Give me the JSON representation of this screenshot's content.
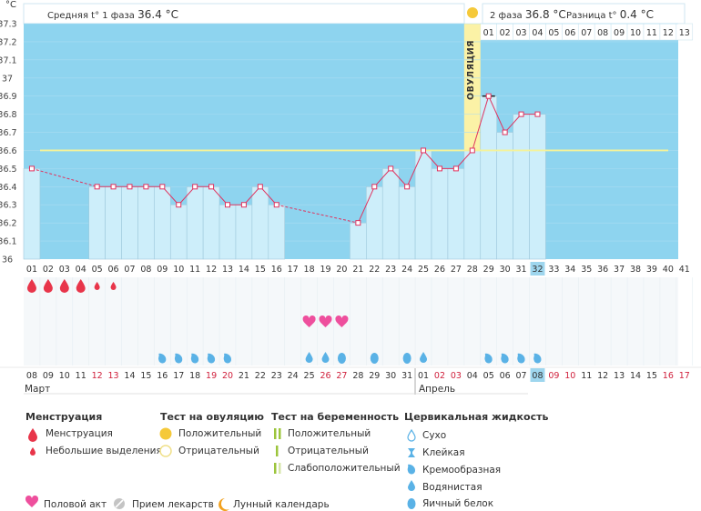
{
  "unit_label": "°C",
  "header": {
    "phase1_label": "Средняя t° 1 фаза",
    "phase1_value": "36.4 °C",
    "phase2_label": "2 фаза",
    "phase2_value": "36.8 °C",
    "diff_label": "Разница t°",
    "diff_value": "0.4 °C"
  },
  "ovulation_label": "ОВУЛЯЦИЯ",
  "luteal_days": [
    "01",
    "02",
    "03",
    "04",
    "05",
    "06",
    "07",
    "08",
    "09",
    "10",
    "11",
    "12",
    "13"
  ],
  "cycle_days": [
    "01",
    "02",
    "03",
    "04",
    "05",
    "06",
    "07",
    "08",
    "09",
    "10",
    "11",
    "12",
    "13",
    "14",
    "15",
    "16",
    "17",
    "18",
    "19",
    "20",
    "21",
    "22",
    "23",
    "24",
    "25",
    "26",
    "27",
    "28",
    "29",
    "30",
    "31",
    "32",
    "33",
    "34",
    "35",
    "36",
    "37",
    "38",
    "39",
    "40",
    "41"
  ],
  "dates": [
    {
      "t": "08",
      "red": false
    },
    {
      "t": "09",
      "red": false
    },
    {
      "t": "10",
      "red": false
    },
    {
      "t": "11",
      "red": false
    },
    {
      "t": "12",
      "red": true
    },
    {
      "t": "13",
      "red": true
    },
    {
      "t": "14",
      "red": false
    },
    {
      "t": "15",
      "red": false
    },
    {
      "t": "16",
      "red": false
    },
    {
      "t": "17",
      "red": false
    },
    {
      "t": "18",
      "red": false
    },
    {
      "t": "19",
      "red": true
    },
    {
      "t": "20",
      "red": true
    },
    {
      "t": "21",
      "red": false
    },
    {
      "t": "22",
      "red": false
    },
    {
      "t": "23",
      "red": false
    },
    {
      "t": "24",
      "red": false
    },
    {
      "t": "25",
      "red": false
    },
    {
      "t": "26",
      "red": true
    },
    {
      "t": "27",
      "red": true
    },
    {
      "t": "28",
      "red": false
    },
    {
      "t": "29",
      "red": false
    },
    {
      "t": "30",
      "red": false
    },
    {
      "t": "31",
      "red": false
    },
    {
      "t": "01",
      "red": false
    },
    {
      "t": "02",
      "red": true
    },
    {
      "t": "03",
      "red": true
    },
    {
      "t": "04",
      "red": false
    },
    {
      "t": "05",
      "red": false
    },
    {
      "t": "06",
      "red": false
    },
    {
      "t": "07",
      "red": false
    },
    {
      "t": "08",
      "red": false
    },
    {
      "t": "09",
      "red": true
    },
    {
      "t": "10",
      "red": true
    },
    {
      "t": "11",
      "red": false
    },
    {
      "t": "12",
      "red": false
    },
    {
      "t": "13",
      "red": false
    },
    {
      "t": "14",
      "red": false
    },
    {
      "t": "15",
      "red": false
    },
    {
      "t": "16",
      "red": true
    },
    {
      "t": "17",
      "red": true
    }
  ],
  "months": {
    "first": "Март",
    "second": "Апрель"
  },
  "chart_data": {
    "type": "line",
    "title": "",
    "xlabel": "",
    "ylabel": "°C",
    "ylim": [
      36.0,
      37.3
    ],
    "y_ticks": [
      "36",
      "36.1",
      "36.2",
      "36.3",
      "36.4",
      "36.5",
      "36.6",
      "36.7",
      "36.8",
      "36.9",
      "37",
      "37.1",
      "37.2",
      "37.3"
    ],
    "coverline": 36.6,
    "ovulation_day": 28,
    "current_day": 32,
    "series": [
      {
        "x": [
          1,
          5,
          6,
          7,
          8,
          9,
          10,
          11,
          12,
          13,
          14,
          15,
          16,
          21,
          22,
          23,
          24,
          25,
          26,
          27,
          28,
          29,
          30,
          31,
          32
        ],
        "values": [
          36.5,
          36.4,
          36.4,
          36.4,
          36.4,
          36.4,
          36.3,
          36.4,
          36.4,
          36.3,
          36.3,
          36.4,
          36.3,
          36.2,
          36.4,
          36.5,
          36.4,
          36.6,
          36.5,
          36.5,
          36.6,
          36.9,
          36.7,
          36.8,
          36.8
        ]
      }
    ]
  },
  "symptoms": {
    "menstruation": [
      {
        "day": 1,
        "kind": "full"
      },
      {
        "day": 2,
        "kind": "full"
      },
      {
        "day": 3,
        "kind": "full"
      },
      {
        "day": 4,
        "kind": "full"
      },
      {
        "day": 5,
        "kind": "light"
      },
      {
        "day": 6,
        "kind": "light"
      }
    ],
    "intercourse_days": [
      18,
      19,
      20
    ],
    "fluid": [
      {
        "day": 9,
        "kind": "creamy"
      },
      {
        "day": 10,
        "kind": "creamy"
      },
      {
        "day": 11,
        "kind": "creamy"
      },
      {
        "day": 12,
        "kind": "creamy"
      },
      {
        "day": 13,
        "kind": "creamy"
      },
      {
        "day": 18,
        "kind": "watery"
      },
      {
        "day": 19,
        "kind": "watery"
      },
      {
        "day": 20,
        "kind": "eggwhite"
      },
      {
        "day": 22,
        "kind": "eggwhite"
      },
      {
        "day": 24,
        "kind": "eggwhite"
      },
      {
        "day": 25,
        "kind": "watery"
      },
      {
        "day": 29,
        "kind": "creamy"
      },
      {
        "day": 30,
        "kind": "creamy"
      },
      {
        "day": 31,
        "kind": "creamy"
      },
      {
        "day": 32,
        "kind": "creamy"
      }
    ]
  },
  "legend": {
    "menstruation": {
      "title": "Менструация",
      "items": [
        "Менструация",
        "Небольшие выделения"
      ]
    },
    "ovulation_test": {
      "title": "Тест на овуляцию",
      "items": [
        "Положительный",
        "Отрицательный"
      ]
    },
    "pregnancy_test": {
      "title": "Тест на беременность",
      "items": [
        "Положительный",
        "Отрицательный",
        "Слабоположительный"
      ]
    },
    "fluid": {
      "title": "Цервикальная жидкость",
      "items": [
        "Сухо",
        "Клейкая",
        "Кремообразная",
        "Водянистая",
        "Яичный белок"
      ]
    },
    "bottom": [
      "Половой акт",
      "Прием лекарств",
      "Лунный календарь"
    ]
  },
  "colors": {
    "plot_bg": "#8ed4ef",
    "bar": "#cdeefa",
    "bar_edge": "#9fc9dc",
    "line": "#e0335f",
    "coverline": "#f4f29a",
    "ovulation_band": "#fbf2a6",
    "drop": "#e8354a",
    "heart": "#ee4f9d",
    "fluid": "#5ab2e6",
    "highlight": "#9ed6ee"
  }
}
